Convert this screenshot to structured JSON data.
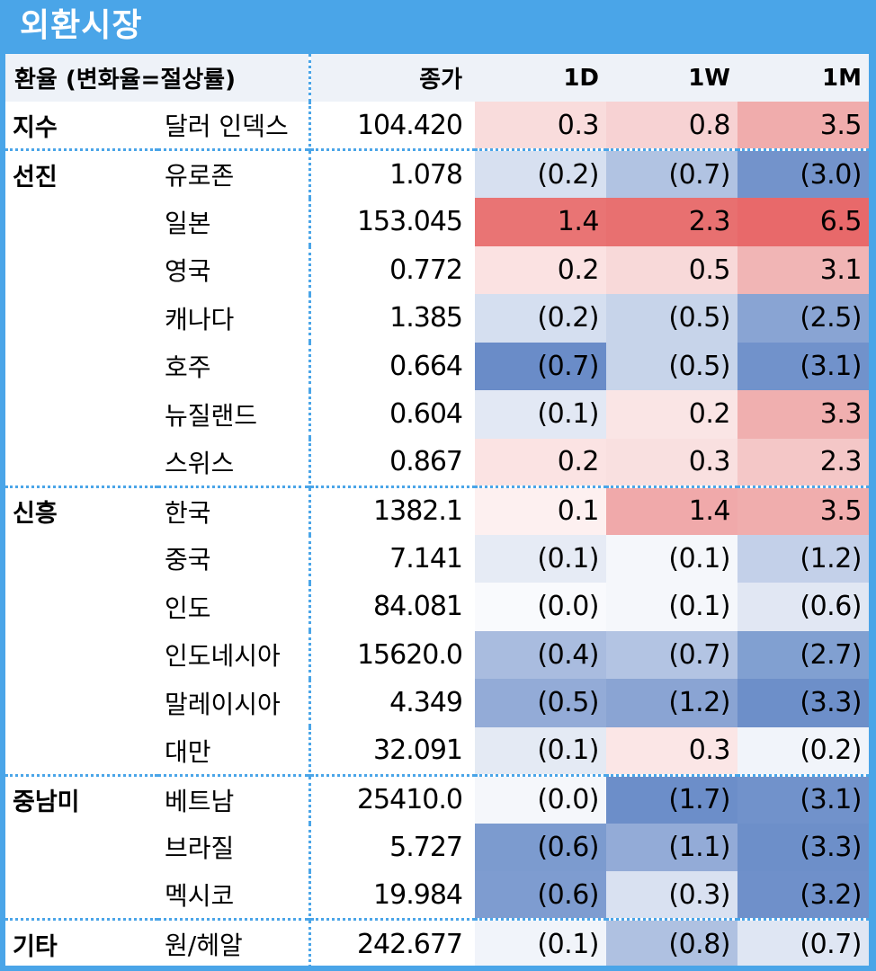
{
  "title": "외환시장",
  "header": {
    "label": "환율 (변화율=절상률)",
    "close": "종가",
    "d1": "1D",
    "w1": "1W",
    "m1": "1M"
  },
  "rows": [
    {
      "region": "지수",
      "name": "달러 인덱스",
      "close": "104.420",
      "d1": "0.3",
      "w1": "0.8",
      "m1": "3.5",
      "d1_bg": "#f9dcdc",
      "w1_bg": "#f7d2d3",
      "m1_bg": "#f0acac",
      "group_start": true
    },
    {
      "region": "선진",
      "name": "유로존",
      "close": "1.078",
      "d1": "(0.2)",
      "w1": "(0.7)",
      "m1": "(3.0)",
      "d1_bg": "#d7e0f0",
      "w1_bg": "#b1c3e2",
      "m1_bg": "#7393cb",
      "group_start": true
    },
    {
      "region": "",
      "name": "일본",
      "close": "153.045",
      "d1": "1.4",
      "w1": "2.3",
      "m1": "6.5",
      "d1_bg": "#e97474",
      "w1_bg": "#e87070",
      "m1_bg": "#e8696a",
      "group_start": false
    },
    {
      "region": "",
      "name": "영국",
      "close": "0.772",
      "d1": "0.2",
      "w1": "0.5",
      "m1": "3.1",
      "d1_bg": "#fbe2e2",
      "w1_bg": "#f8d9d9",
      "m1_bg": "#f1b5b5",
      "group_start": false
    },
    {
      "region": "",
      "name": "캐나다",
      "close": "1.385",
      "d1": "(0.2)",
      "w1": "(0.5)",
      "m1": "(2.5)",
      "d1_bg": "#d5dff0",
      "w1_bg": "#c7d4ea",
      "m1_bg": "#89a4d3",
      "group_start": false
    },
    {
      "region": "",
      "name": "호주",
      "close": "0.664",
      "d1": "(0.7)",
      "w1": "(0.5)",
      "m1": "(3.1)",
      "d1_bg": "#6a8cc8",
      "w1_bg": "#c7d4ea",
      "m1_bg": "#7192cb",
      "group_start": false
    },
    {
      "region": "",
      "name": "뉴질랜드",
      "close": "0.604",
      "d1": "(0.1)",
      "w1": "0.2",
      "m1": "3.3",
      "d1_bg": "#e2e8f4",
      "w1_bg": "#fae5e5",
      "m1_bg": "#f0afaf",
      "group_start": false
    },
    {
      "region": "",
      "name": "스위스",
      "close": "0.867",
      "d1": "0.2",
      "w1": "0.3",
      "m1": "2.3",
      "d1_bg": "#fbe3e3",
      "w1_bg": "#f9e0e0",
      "m1_bg": "#f4c7c7",
      "group_start": false
    },
    {
      "region": "신흥",
      "name": "한국",
      "close": "1382.1",
      "d1": "0.1",
      "w1": "1.4",
      "m1": "3.5",
      "d1_bg": "#fdf0f0",
      "w1_bg": "#f0a9aa",
      "m1_bg": "#f0adad",
      "group_start": true
    },
    {
      "region": "",
      "name": "중국",
      "close": "7.141",
      "d1": "(0.1)",
      "w1": "(0.1)",
      "m1": "(1.2)",
      "d1_bg": "#e6ebf5",
      "w1_bg": "#f5f7fb",
      "m1_bg": "#c3d0e9",
      "group_start": false
    },
    {
      "region": "",
      "name": "인도",
      "close": "84.081",
      "d1": "(0.0)",
      "w1": "(0.1)",
      "m1": "(0.6)",
      "d1_bg": "#f9fafd",
      "w1_bg": "#f5f7fb",
      "m1_bg": "#e1e7f3",
      "group_start": false
    },
    {
      "region": "",
      "name": "인도네시아",
      "close": "15620.0",
      "d1": "(0.4)",
      "w1": "(0.7)",
      "m1": "(2.7)",
      "d1_bg": "#a9bcdf",
      "w1_bg": "#b3c4e3",
      "m1_bg": "#81a0d1",
      "group_start": false
    },
    {
      "region": "",
      "name": "말레이시아",
      "close": "4.349",
      "d1": "(0.5)",
      "w1": "(1.2)",
      "m1": "(3.3)",
      "d1_bg": "#93abd7",
      "w1_bg": "#8aa4d3",
      "m1_bg": "#6d8fc9",
      "group_start": false
    },
    {
      "region": "",
      "name": "대만",
      "close": "32.091",
      "d1": "(0.1)",
      "w1": "0.3",
      "m1": "(0.2)",
      "d1_bg": "#e4eaf4",
      "w1_bg": "#fbe6e6",
      "m1_bg": "#f1f4fa",
      "group_start": false
    },
    {
      "region": "중남미",
      "name": "베트남",
      "close": "25410.0",
      "d1": "(0.0)",
      "w1": "(1.7)",
      "m1": "(3.1)",
      "d1_bg": "#f5f7fb",
      "w1_bg": "#6c8ec9",
      "m1_bg": "#7192cb",
      "group_start": true
    },
    {
      "region": "",
      "name": "브라질",
      "close": "5.727",
      "d1": "(0.6)",
      "w1": "(1.1)",
      "m1": "(3.3)",
      "d1_bg": "#7c9bcf",
      "w1_bg": "#93abd7",
      "m1_bg": "#6d8fc9",
      "group_start": false
    },
    {
      "region": "",
      "name": "멕시코",
      "close": "19.984",
      "d1": "(0.6)",
      "w1": "(0.3)",
      "m1": "(3.2)",
      "d1_bg": "#7e9cd0",
      "w1_bg": "#d9e1f1",
      "m1_bg": "#6f90ca",
      "group_start": false
    },
    {
      "region": "기타",
      "name": "원/헤알",
      "close": "242.677",
      "d1": "(0.1)",
      "w1": "(0.8)",
      "m1": "(0.7)",
      "d1_bg": "#f1f4fa",
      "w1_bg": "#afc1e1",
      "m1_bg": "#dfe6f3",
      "group_start": true
    }
  ]
}
